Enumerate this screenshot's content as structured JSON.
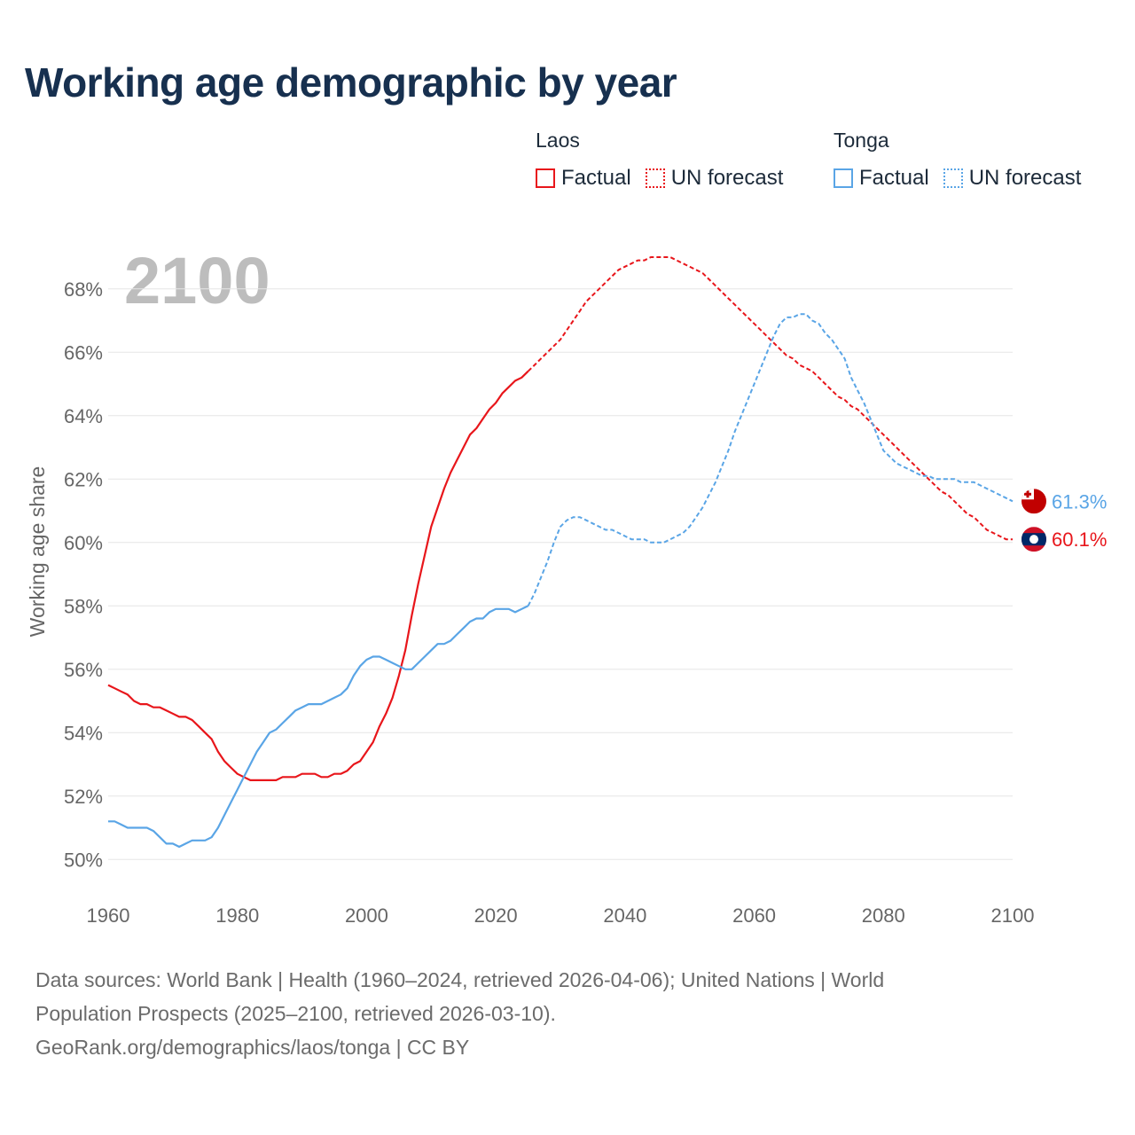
{
  "title": "Working age demographic by year",
  "legend": {
    "groups": [
      {
        "name": "Laos",
        "factual_label": "Factual",
        "forecast_label": "UN forecast",
        "color": "#e8161b"
      },
      {
        "name": "Tonga",
        "factual_label": "Factual",
        "forecast_label": "UN forecast",
        "color": "#5aa5e6"
      }
    ]
  },
  "chart_data": {
    "type": "line",
    "title": "Working age demographic by year",
    "xlabel": "",
    "ylabel": "Working age share",
    "xlim": [
      1960,
      2100
    ],
    "ylim": [
      49,
      69
    ],
    "xticks": [
      1960,
      1980,
      2000,
      2020,
      2040,
      2060,
      2080,
      2100
    ],
    "yticks": [
      50,
      52,
      54,
      56,
      58,
      60,
      62,
      64,
      66,
      68
    ],
    "ytick_suffix": "%",
    "grid": true,
    "year_overlay": "2100",
    "factual_end_year": 2025,
    "series": [
      {
        "name": "Laos",
        "color": "#e8161b",
        "end_label": "60.1%",
        "flag": "laos",
        "points": [
          [
            1960,
            55.5
          ],
          [
            1961,
            55.4
          ],
          [
            1962,
            55.3
          ],
          [
            1963,
            55.2
          ],
          [
            1964,
            55.0
          ],
          [
            1965,
            54.9
          ],
          [
            1966,
            54.9
          ],
          [
            1967,
            54.8
          ],
          [
            1968,
            54.8
          ],
          [
            1969,
            54.7
          ],
          [
            1970,
            54.6
          ],
          [
            1971,
            54.5
          ],
          [
            1972,
            54.5
          ],
          [
            1973,
            54.4
          ],
          [
            1974,
            54.2
          ],
          [
            1975,
            54.0
          ],
          [
            1976,
            53.8
          ],
          [
            1977,
            53.4
          ],
          [
            1978,
            53.1
          ],
          [
            1979,
            52.9
          ],
          [
            1980,
            52.7
          ],
          [
            1981,
            52.6
          ],
          [
            1982,
            52.5
          ],
          [
            1983,
            52.5
          ],
          [
            1984,
            52.5
          ],
          [
            1985,
            52.5
          ],
          [
            1986,
            52.5
          ],
          [
            1987,
            52.6
          ],
          [
            1988,
            52.6
          ],
          [
            1989,
            52.6
          ],
          [
            1990,
            52.7
          ],
          [
            1991,
            52.7
          ],
          [
            1992,
            52.7
          ],
          [
            1993,
            52.6
          ],
          [
            1994,
            52.6
          ],
          [
            1995,
            52.7
          ],
          [
            1996,
            52.7
          ],
          [
            1997,
            52.8
          ],
          [
            1998,
            53.0
          ],
          [
            1999,
            53.1
          ],
          [
            2000,
            53.4
          ],
          [
            2001,
            53.7
          ],
          [
            2002,
            54.2
          ],
          [
            2003,
            54.6
          ],
          [
            2004,
            55.1
          ],
          [
            2005,
            55.8
          ],
          [
            2006,
            56.6
          ],
          [
            2007,
            57.7
          ],
          [
            2008,
            58.7
          ],
          [
            2009,
            59.6
          ],
          [
            2010,
            60.5
          ],
          [
            2011,
            61.1
          ],
          [
            2012,
            61.7
          ],
          [
            2013,
            62.2
          ],
          [
            2014,
            62.6
          ],
          [
            2015,
            63.0
          ],
          [
            2016,
            63.4
          ],
          [
            2017,
            63.6
          ],
          [
            2018,
            63.9
          ],
          [
            2019,
            64.2
          ],
          [
            2020,
            64.4
          ],
          [
            2021,
            64.7
          ],
          [
            2022,
            64.9
          ],
          [
            2023,
            65.1
          ],
          [
            2024,
            65.2
          ],
          [
            2025,
            65.4
          ],
          [
            2026,
            65.6
          ],
          [
            2027,
            65.8
          ],
          [
            2028,
            66.0
          ],
          [
            2029,
            66.2
          ],
          [
            2030,
            66.4
          ],
          [
            2031,
            66.7
          ],
          [
            2032,
            67.0
          ],
          [
            2033,
            67.3
          ],
          [
            2034,
            67.6
          ],
          [
            2035,
            67.8
          ],
          [
            2036,
            68.0
          ],
          [
            2037,
            68.2
          ],
          [
            2038,
            68.4
          ],
          [
            2039,
            68.6
          ],
          [
            2040,
            68.7
          ],
          [
            2041,
            68.8
          ],
          [
            2042,
            68.9
          ],
          [
            2043,
            68.9
          ],
          [
            2044,
            69.0
          ],
          [
            2045,
            69.0
          ],
          [
            2046,
            69.0
          ],
          [
            2047,
            69.0
          ],
          [
            2048,
            68.9
          ],
          [
            2049,
            68.8
          ],
          [
            2050,
            68.7
          ],
          [
            2051,
            68.6
          ],
          [
            2052,
            68.5
          ],
          [
            2053,
            68.3
          ],
          [
            2054,
            68.1
          ],
          [
            2055,
            67.9
          ],
          [
            2056,
            67.7
          ],
          [
            2057,
            67.5
          ],
          [
            2058,
            67.3
          ],
          [
            2059,
            67.1
          ],
          [
            2060,
            66.9
          ],
          [
            2061,
            66.7
          ],
          [
            2062,
            66.5
          ],
          [
            2063,
            66.3
          ],
          [
            2064,
            66.1
          ],
          [
            2065,
            65.9
          ],
          [
            2066,
            65.8
          ],
          [
            2067,
            65.6
          ],
          [
            2068,
            65.5
          ],
          [
            2069,
            65.4
          ],
          [
            2070,
            65.2
          ],
          [
            2071,
            65.0
          ],
          [
            2072,
            64.8
          ],
          [
            2073,
            64.6
          ],
          [
            2074,
            64.5
          ],
          [
            2075,
            64.3
          ],
          [
            2076,
            64.2
          ],
          [
            2077,
            64.0
          ],
          [
            2078,
            63.8
          ],
          [
            2079,
            63.6
          ],
          [
            2080,
            63.4
          ],
          [
            2081,
            63.2
          ],
          [
            2082,
            63.0
          ],
          [
            2083,
            62.8
          ],
          [
            2084,
            62.6
          ],
          [
            2085,
            62.4
          ],
          [
            2086,
            62.2
          ],
          [
            2087,
            62.0
          ],
          [
            2088,
            61.8
          ],
          [
            2089,
            61.6
          ],
          [
            2090,
            61.5
          ],
          [
            2091,
            61.3
          ],
          [
            2092,
            61.1
          ],
          [
            2093,
            60.9
          ],
          [
            2094,
            60.8
          ],
          [
            2095,
            60.6
          ],
          [
            2096,
            60.4
          ],
          [
            2097,
            60.3
          ],
          [
            2098,
            60.2
          ],
          [
            2099,
            60.1
          ],
          [
            2100,
            60.1
          ]
        ]
      },
      {
        "name": "Tonga",
        "color": "#5aa5e6",
        "end_label": "61.3%",
        "flag": "tonga",
        "points": [
          [
            1960,
            51.2
          ],
          [
            1961,
            51.2
          ],
          [
            1962,
            51.1
          ],
          [
            1963,
            51.0
          ],
          [
            1964,
            51.0
          ],
          [
            1965,
            51.0
          ],
          [
            1966,
            51.0
          ],
          [
            1967,
            50.9
          ],
          [
            1968,
            50.7
          ],
          [
            1969,
            50.5
          ],
          [
            1970,
            50.5
          ],
          [
            1971,
            50.4
          ],
          [
            1972,
            50.5
          ],
          [
            1973,
            50.6
          ],
          [
            1974,
            50.6
          ],
          [
            1975,
            50.6
          ],
          [
            1976,
            50.7
          ],
          [
            1977,
            51.0
          ],
          [
            1978,
            51.4
          ],
          [
            1979,
            51.8
          ],
          [
            1980,
            52.2
          ],
          [
            1981,
            52.6
          ],
          [
            1982,
            53.0
          ],
          [
            1983,
            53.4
          ],
          [
            1984,
            53.7
          ],
          [
            1985,
            54.0
          ],
          [
            1986,
            54.1
          ],
          [
            1987,
            54.3
          ],
          [
            1988,
            54.5
          ],
          [
            1989,
            54.7
          ],
          [
            1990,
            54.8
          ],
          [
            1991,
            54.9
          ],
          [
            1992,
            54.9
          ],
          [
            1993,
            54.9
          ],
          [
            1994,
            55.0
          ],
          [
            1995,
            55.1
          ],
          [
            1996,
            55.2
          ],
          [
            1997,
            55.4
          ],
          [
            1998,
            55.8
          ],
          [
            1999,
            56.1
          ],
          [
            2000,
            56.3
          ],
          [
            2001,
            56.4
          ],
          [
            2002,
            56.4
          ],
          [
            2003,
            56.3
          ],
          [
            2004,
            56.2
          ],
          [
            2005,
            56.1
          ],
          [
            2006,
            56.0
          ],
          [
            2007,
            56.0
          ],
          [
            2008,
            56.2
          ],
          [
            2009,
            56.4
          ],
          [
            2010,
            56.6
          ],
          [
            2011,
            56.8
          ],
          [
            2012,
            56.8
          ],
          [
            2013,
            56.9
          ],
          [
            2014,
            57.1
          ],
          [
            2015,
            57.3
          ],
          [
            2016,
            57.5
          ],
          [
            2017,
            57.6
          ],
          [
            2018,
            57.6
          ],
          [
            2019,
            57.8
          ],
          [
            2020,
            57.9
          ],
          [
            2021,
            57.9
          ],
          [
            2022,
            57.9
          ],
          [
            2023,
            57.8
          ],
          [
            2024,
            57.9
          ],
          [
            2025,
            58.0
          ],
          [
            2026,
            58.4
          ],
          [
            2027,
            58.9
          ],
          [
            2028,
            59.4
          ],
          [
            2029,
            60.0
          ],
          [
            2030,
            60.5
          ],
          [
            2031,
            60.7
          ],
          [
            2032,
            60.8
          ],
          [
            2033,
            60.8
          ],
          [
            2034,
            60.7
          ],
          [
            2035,
            60.6
          ],
          [
            2036,
            60.5
          ],
          [
            2037,
            60.4
          ],
          [
            2038,
            60.4
          ],
          [
            2039,
            60.3
          ],
          [
            2040,
            60.2
          ],
          [
            2041,
            60.1
          ],
          [
            2042,
            60.1
          ],
          [
            2043,
            60.1
          ],
          [
            2044,
            60.0
          ],
          [
            2045,
            60.0
          ],
          [
            2046,
            60.0
          ],
          [
            2047,
            60.1
          ],
          [
            2048,
            60.2
          ],
          [
            2049,
            60.3
          ],
          [
            2050,
            60.5
          ],
          [
            2051,
            60.8
          ],
          [
            2052,
            61.1
          ],
          [
            2053,
            61.5
          ],
          [
            2054,
            61.9
          ],
          [
            2055,
            62.4
          ],
          [
            2056,
            62.9
          ],
          [
            2057,
            63.5
          ],
          [
            2058,
            64.0
          ],
          [
            2059,
            64.5
          ],
          [
            2060,
            65.0
          ],
          [
            2061,
            65.5
          ],
          [
            2062,
            66.0
          ],
          [
            2063,
            66.5
          ],
          [
            2064,
            66.9
          ],
          [
            2065,
            67.1
          ],
          [
            2066,
            67.1
          ],
          [
            2067,
            67.2
          ],
          [
            2068,
            67.2
          ],
          [
            2069,
            67.0
          ],
          [
            2070,
            66.9
          ],
          [
            2071,
            66.6
          ],
          [
            2072,
            66.4
          ],
          [
            2073,
            66.1
          ],
          [
            2074,
            65.8
          ],
          [
            2075,
            65.2
          ],
          [
            2076,
            64.8
          ],
          [
            2077,
            64.4
          ],
          [
            2078,
            63.9
          ],
          [
            2079,
            63.4
          ],
          [
            2080,
            62.9
          ],
          [
            2081,
            62.7
          ],
          [
            2082,
            62.5
          ],
          [
            2083,
            62.4
          ],
          [
            2084,
            62.3
          ],
          [
            2085,
            62.2
          ],
          [
            2086,
            62.1
          ],
          [
            2087,
            62.1
          ],
          [
            2088,
            62.0
          ],
          [
            2089,
            62.0
          ],
          [
            2090,
            62.0
          ],
          [
            2091,
            62.0
          ],
          [
            2092,
            61.9
          ],
          [
            2093,
            61.9
          ],
          [
            2094,
            61.9
          ],
          [
            2095,
            61.8
          ],
          [
            2096,
            61.7
          ],
          [
            2097,
            61.6
          ],
          [
            2098,
            61.5
          ],
          [
            2099,
            61.4
          ],
          [
            2100,
            61.3
          ]
        ]
      }
    ]
  },
  "footer": {
    "line1": "Data sources: World Bank | Health (1960–2024, retrieved 2026-04-06); United Nations | World",
    "line2": "Population Prospects (2025–2100, retrieved 2026-03-10).",
    "line3": "GeoRank.org/demographics/laos/tonga | CC BY"
  }
}
